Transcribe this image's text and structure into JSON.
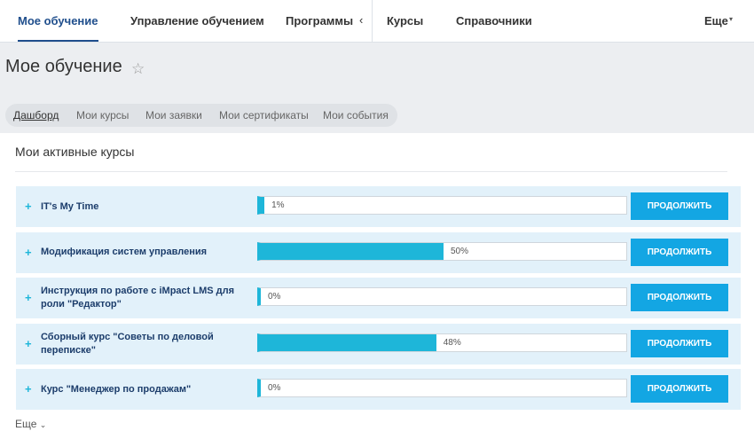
{
  "nav": {
    "items": [
      "Мое обучение",
      "Управление обучением",
      "Программы",
      "Курсы",
      "Справочники"
    ],
    "more": "Еще"
  },
  "page": {
    "title": "Мое обучение",
    "subtabs": [
      "Дашборд",
      "Мои курсы",
      "Мои заявки",
      "Мои сертификаты",
      "Мои события"
    ]
  },
  "section": {
    "title": "Мои активные курсы",
    "courses": [
      {
        "title": "IT's My Time",
        "progress": 1,
        "progress_label": "1%",
        "button": "ПРОДОЛЖИТЬ"
      },
      {
        "title": "Модификация систем управления",
        "progress": 50,
        "progress_label": "50%",
        "button": "ПРОДОЛЖИТЬ"
      },
      {
        "title": "Инструкция по работе с iMpact LMS для роли \"Редактор\"",
        "progress": 0,
        "progress_label": "0%",
        "button": "ПРОДОЛЖИТЬ"
      },
      {
        "title": "Сборный курс \"Советы по деловой переписке\"",
        "progress": 48,
        "progress_label": "48%",
        "button": "ПРОДОЛЖИТЬ"
      },
      {
        "title": "Курс \"Менеджер по продажам\"",
        "progress": 0,
        "progress_label": "0%",
        "button": "ПРОДОЛЖИТЬ"
      }
    ],
    "more": "Еще"
  }
}
